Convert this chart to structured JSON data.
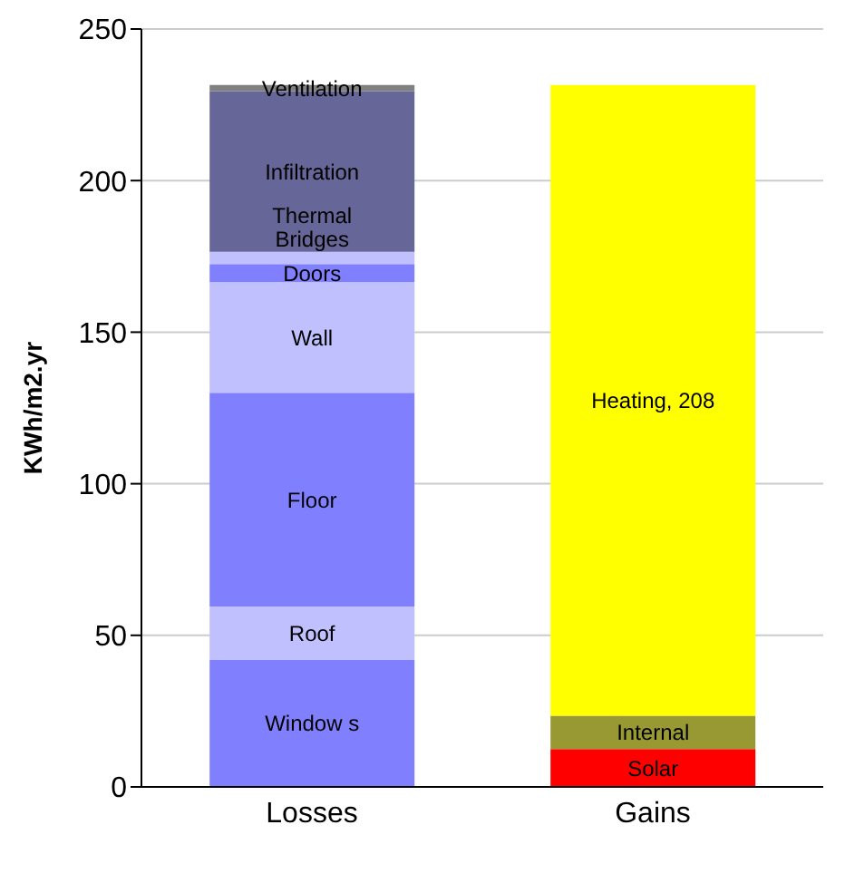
{
  "chart_data": {
    "type": "bar",
    "stacked": true,
    "categories": [
      "Losses",
      "Gains"
    ],
    "ylabel": "KWh/m2.yr",
    "ylim": [
      0,
      250
    ],
    "yticks": [
      0,
      50,
      100,
      150,
      200,
      250
    ],
    "grid": "y",
    "legend": false,
    "series": [
      {
        "name": "Window s",
        "color": "#8080ff",
        "values": [
          42,
          null
        ]
      },
      {
        "name": "Roof",
        "color": "#c0c0ff",
        "values": [
          17.5,
          null
        ]
      },
      {
        "name": "Floor",
        "color": "#8080ff",
        "values": [
          70.5,
          null
        ]
      },
      {
        "name": "Wall",
        "color": "#c0c0ff",
        "values": [
          36.5,
          null
        ]
      },
      {
        "name": "Doors",
        "color": "#8080ff",
        "values": [
          6,
          null
        ]
      },
      {
        "name": "Thermal Bridges",
        "color": "#c0c0ff",
        "values": [
          4,
          null
        ]
      },
      {
        "name": "Infiltration",
        "color": "#666699",
        "values": [
          53,
          null
        ]
      },
      {
        "name": "Ventilation",
        "color": "#808080",
        "values": [
          2,
          null
        ]
      },
      {
        "name": "Solar",
        "color": "#ff0000",
        "values": [
          null,
          12.5
        ]
      },
      {
        "name": "Internal",
        "color": "#999933",
        "values": [
          null,
          11
        ]
      },
      {
        "name": "Heating,",
        "color": "#ffff00",
        "values": [
          null,
          208
        ],
        "value_labels": [
          null,
          "208"
        ]
      }
    ]
  }
}
